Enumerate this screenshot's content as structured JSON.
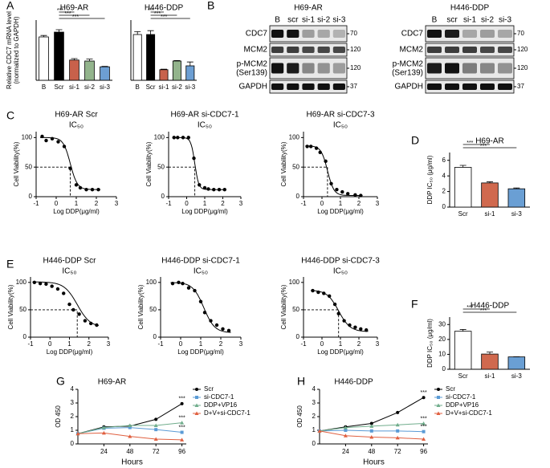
{
  "panel_labels": [
    "A",
    "B",
    "C",
    "D",
    "E",
    "F",
    "G",
    "H"
  ],
  "blots": [
    {
      "title": "H69-AR",
      "lanes": [
        "B",
        "scr",
        "si-1",
        "si-2",
        "si-3"
      ],
      "rows": [
        {
          "name": "CDC7",
          "mw": "70"
        },
        {
          "name": "MCM2",
          "mw": "120"
        },
        {
          "name": "p-MCM2",
          "sublabel": "(Ser139)",
          "mw": "120"
        },
        {
          "name": "GAPDH",
          "mw": "37"
        }
      ]
    },
    {
      "title": "H446-DDP",
      "lanes": [
        "B",
        "scr",
        "si-1",
        "si-2",
        "si-3"
      ],
      "rows": [
        {
          "name": "CDC7",
          "mw": "70"
        },
        {
          "name": "MCM2",
          "mw": "120"
        },
        {
          "name": "p-MCM2",
          "sublabel": "(Ser139)",
          "mw": "120"
        },
        {
          "name": "GAPDH",
          "mw": "37"
        }
      ]
    }
  ],
  "chart_data": [
    {
      "type": "bar",
      "title": "H69-AR",
      "ylabel": [
        "Relative CDC7 mRNA level",
        "(normalized to GAPDH)"
      ],
      "categories": [
        "B",
        "Scr",
        "si-1",
        "si-2",
        "si-3"
      ],
      "values": [
        0.9,
        1.0,
        0.42,
        0.4,
        0.28
      ],
      "errors": [
        0.03,
        0.05,
        0.03,
        0.04,
        0.01
      ],
      "colors": [
        "#ffffff",
        "#000000",
        "#c8614b",
        "#93b48c",
        "#6d9fd3"
      ],
      "ylim": [
        0,
        1.25
      ],
      "annotations": [
        {
          "text": "***",
          "from": "Scr",
          "to": "si-1"
        },
        {
          "text": "***",
          "from": "Scr",
          "to": "si-2"
        },
        {
          "text": "***",
          "from": "Scr",
          "to": "si-3"
        }
      ]
    },
    {
      "type": "bar",
      "title": "H446-DDP",
      "categories": [
        "B",
        "Scr",
        "si-1",
        "si-2",
        "si-3"
      ],
      "values": [
        0.95,
        0.95,
        0.22,
        0.4,
        0.3
      ],
      "errors": [
        0.06,
        0.08,
        0.01,
        0.01,
        0.08
      ],
      "colors": [
        "#ffffff",
        "#000000",
        "#c8614b",
        "#93b48c",
        "#6d9fd3"
      ],
      "ylim": [
        0,
        1.25
      ],
      "annotations": [
        {
          "text": "***",
          "from": "Scr",
          "to": "si-1"
        },
        {
          "text": "***",
          "from": "Scr",
          "to": "si-2"
        },
        {
          "text": "***",
          "from": "Scr",
          "to": "si-3"
        }
      ]
    },
    {
      "type": "scatter",
      "title": "H69-AR Scr",
      "subtitle": "IC₅₀",
      "xlabel": "Log DDP(μg/ml)",
      "ylabel": "Cell Viability(%)",
      "x": [
        -0.7,
        -0.5,
        -0.2,
        0.1,
        0.4,
        0.7,
        1.0,
        1.2,
        1.5,
        1.8,
        2.1
      ],
      "values": [
        102,
        95,
        98,
        93,
        85,
        48,
        20,
        15,
        12,
        12,
        12
      ],
      "xlim": [
        -1,
        3
      ],
      "xticks": [
        -1,
        0,
        1,
        2,
        3
      ],
      "ylim": [
        0,
        110
      ],
      "yticks": [
        0,
        50,
        100
      ],
      "color": "#000000",
      "fit": {
        "top": 100,
        "bottom": 12,
        "log_ic50": 0.7,
        "hill": 2.5,
        "ic50_level": 50
      },
      "ic50_line": true
    },
    {
      "type": "scatter",
      "title": "H69-AR si-CDC7-1",
      "subtitle": "IC₅₀",
      "xlabel": "Log DDP(μg/ml)",
      "ylabel": "Cell Viability(%)",
      "x": [
        -0.7,
        -0.5,
        -0.2,
        0.1,
        0.4,
        0.7,
        1.0,
        1.2,
        1.5,
        1.8,
        2.1
      ],
      "values": [
        100,
        100,
        100,
        100,
        65,
        20,
        15,
        13,
        12,
        12,
        12
      ],
      "xlim": [
        -1,
        3
      ],
      "xticks": [
        -1,
        0,
        1,
        2,
        3
      ],
      "ylim": [
        0,
        110
      ],
      "yticks": [
        0,
        50,
        100
      ],
      "color": "#000000",
      "fit": {
        "top": 100,
        "bottom": 12,
        "log_ic50": 0.45,
        "hill": 4,
        "ic50_level": 50
      },
      "ic50_line": true
    },
    {
      "type": "scatter",
      "title": "H69-AR si-CDC7-3",
      "subtitle": "IC₅₀",
      "xlabel": "Log DDP(μg/ml)",
      "ylabel": "Cell Viability(%)",
      "x": [
        -0.8,
        -0.6,
        -0.3,
        -0.1,
        0.2,
        0.5,
        0.8,
        1.1,
        1.4,
        1.8,
        2.1
      ],
      "values": [
        85,
        85,
        82,
        75,
        60,
        22,
        12,
        8,
        5,
        3,
        2
      ],
      "xlim": [
        -1,
        3
      ],
      "xticks": [
        -1,
        0,
        1,
        2,
        3
      ],
      "ylim": [
        0,
        110
      ],
      "yticks": [
        0,
        50,
        100
      ],
      "color": "#000000",
      "fit": {
        "top": 86,
        "bottom": 2,
        "log_ic50": 0.3,
        "hill": 2.5,
        "ic50_level": 50
      },
      "ic50_line": true
    },
    {
      "type": "bar",
      "title": "H69-AR",
      "ylabel": [
        "DDP IC₅₀ (μg/ml)"
      ],
      "categories": [
        "Scr",
        "si-1",
        "si-3"
      ],
      "values": [
        5.1,
        3.1,
        2.35
      ],
      "errors": [
        0.25,
        0.15,
        0.1
      ],
      "colors": [
        "#ffffff",
        "#d0694e",
        "#6a9fd4"
      ],
      "ylim": [
        0,
        7
      ],
      "yticks": [
        0,
        2,
        4,
        6
      ],
      "annotations": [
        {
          "text": "***",
          "from": "Scr",
          "to": "si-1"
        },
        {
          "text": "***",
          "from": "Scr",
          "to": "si-3"
        }
      ]
    },
    {
      "type": "scatter",
      "title": "H446-DDP Scr",
      "subtitle": "IC₅₀",
      "xlabel": "Log DDP(μg/ml)",
      "ylabel": "Cell Viability(%)",
      "x": [
        -0.8,
        -0.5,
        -0.2,
        0.1,
        0.4,
        0.7,
        1.0,
        1.2,
        1.5,
        1.8,
        2.1,
        2.4
      ],
      "values": [
        100,
        98,
        97,
        93,
        88,
        80,
        60,
        50,
        42,
        30,
        25,
        22
      ],
      "xlim": [
        -1,
        3
      ],
      "xticks": [
        -1,
        0,
        1,
        2,
        3
      ],
      "ylim": [
        0,
        110
      ],
      "yticks": [
        0,
        50,
        100
      ],
      "color": "#000000",
      "fit": {
        "top": 101,
        "bottom": 18,
        "log_ic50": 1.4,
        "hill": 1.3,
        "ic50_level": 50
      },
      "ic50_line": true
    },
    {
      "type": "scatter",
      "title": "H446-DDP si-CDC7-1",
      "subtitle": "IC₅₀",
      "xlabel": "Log DDP(μg/ml)",
      "ylabel": "Cell Viability(%)",
      "x": [
        -0.4,
        -0.1,
        0.1,
        0.4,
        0.7,
        1.0,
        1.2,
        1.5,
        1.8,
        2.1,
        2.4
      ],
      "values": [
        98,
        100,
        98,
        90,
        85,
        65,
        45,
        30,
        22,
        15,
        12
      ],
      "xlim": [
        -1,
        3
      ],
      "xticks": [
        -1,
        0,
        1,
        2,
        3
      ],
      "ylim": [
        0,
        110
      ],
      "yticks": [
        0,
        50,
        100
      ],
      "color": "#000000",
      "fit": {
        "top": 100,
        "bottom": 8,
        "log_ic50": 1.15,
        "hill": 1.6,
        "ic50_level": 50
      },
      "ic50_line": false
    },
    {
      "type": "scatter",
      "title": "H446-DDP si-CDC7-3",
      "subtitle": "IC₅₀",
      "xlabel": "Log DDP(μg/ml)",
      "ylabel": "Cell Viability(%)",
      "x": [
        -0.5,
        -0.2,
        0.1,
        0.4,
        0.7,
        0.9,
        1.2,
        1.5,
        1.8,
        2.1,
        2.4
      ],
      "values": [
        85,
        82,
        80,
        75,
        60,
        43,
        30,
        22,
        18,
        15,
        13
      ],
      "xlim": [
        -1,
        3
      ],
      "xticks": [
        -1,
        0,
        1,
        2,
        3
      ],
      "ylim": [
        0,
        110
      ],
      "yticks": [
        0,
        50,
        100
      ],
      "color": "#000000",
      "fit": {
        "top": 86,
        "bottom": 10,
        "log_ic50": 0.9,
        "hill": 1.4,
        "ic50_level": 50
      },
      "ic50_line": true
    },
    {
      "type": "bar",
      "title": "H446-DDP",
      "ylabel": [
        "DDP IC₅₀ (μg/ml)"
      ],
      "categories": [
        "Scr",
        "si-1",
        "si-3"
      ],
      "values": [
        25.5,
        10.2,
        8.3
      ],
      "errors": [
        1.2,
        1.3,
        0.1
      ],
      "colors": [
        "#ffffff",
        "#d0694e",
        "#6a9fd4"
      ],
      "ylim": [
        0,
        35
      ],
      "yticks": [
        0,
        10,
        20,
        30
      ],
      "annotations": [
        {
          "text": "***",
          "from": "Scr",
          "to": "si-1"
        },
        {
          "text": "***",
          "from": "Scr",
          "to": "si-3"
        }
      ]
    },
    {
      "type": "line",
      "title": "H69-AR",
      "xlabel": "Hours",
      "ylabel": "OD 450",
      "x": [
        0,
        24,
        48,
        72,
        96
      ],
      "xlim": [
        0,
        100
      ],
      "xticks": [
        24,
        48,
        72,
        96
      ],
      "ylim": [
        0,
        4
      ],
      "yticks": [
        0,
        1,
        2,
        3,
        4
      ],
      "legend": "right",
      "series": [
        {
          "name": "Scr",
          "color": "#000000",
          "marker": "circle",
          "values": [
            0.75,
            1.25,
            1.3,
            1.8,
            2.95
          ]
        },
        {
          "name": "si-CDC7-1",
          "color": "#5b9bd5",
          "marker": "square",
          "values": [
            0.75,
            1.15,
            1.2,
            1.05,
            0.85
          ]
        },
        {
          "name": "DDP+VP16",
          "color": "#70ad8c",
          "marker": "triangle",
          "values": [
            0.75,
            1.2,
            1.35,
            1.35,
            1.55
          ]
        },
        {
          "name": "D+V+si-CDC7-1",
          "color": "#e06040",
          "marker": "triangle",
          "values": [
            0.75,
            0.8,
            0.55,
            0.35,
            0.3
          ]
        }
      ],
      "annotations": [
        {
          "text": "***",
          "series": "Scr"
        },
        {
          "text": "***",
          "series": "DDP+VP16"
        },
        {
          "text": "***",
          "series": "si-CDC7-1"
        }
      ]
    },
    {
      "type": "line",
      "title": "H446-DDP",
      "xlabel": "Hours",
      "ylabel": "OD 450",
      "x": [
        0,
        24,
        48,
        72,
        96
      ],
      "xlim": [
        0,
        100
      ],
      "xticks": [
        24,
        48,
        72,
        96
      ],
      "ylim": [
        0,
        4
      ],
      "yticks": [
        0,
        1,
        2,
        3,
        4
      ],
      "legend": "right",
      "series": [
        {
          "name": "Scr",
          "color": "#000000",
          "marker": "circle",
          "values": [
            0.95,
            1.25,
            1.5,
            2.3,
            3.4
          ]
        },
        {
          "name": "si-CDC7-1",
          "color": "#5b9bd5",
          "marker": "square",
          "values": [
            0.95,
            1.0,
            0.95,
            0.95,
            0.9
          ]
        },
        {
          "name": "DDP+VP16",
          "color": "#70ad8c",
          "marker": "triangle",
          "values": [
            0.95,
            1.2,
            1.3,
            1.4,
            1.5
          ]
        },
        {
          "name": "D+V+si-CDC7-1",
          "color": "#e06040",
          "marker": "triangle",
          "values": [
            0.95,
            0.6,
            0.5,
            0.45,
            0.35
          ]
        }
      ],
      "annotations": [
        {
          "text": "***",
          "series": "Scr"
        },
        {
          "text": "***",
          "series": "DDP+VP16"
        },
        {
          "text": "***",
          "series": "si-CDC7-1"
        }
      ]
    }
  ]
}
